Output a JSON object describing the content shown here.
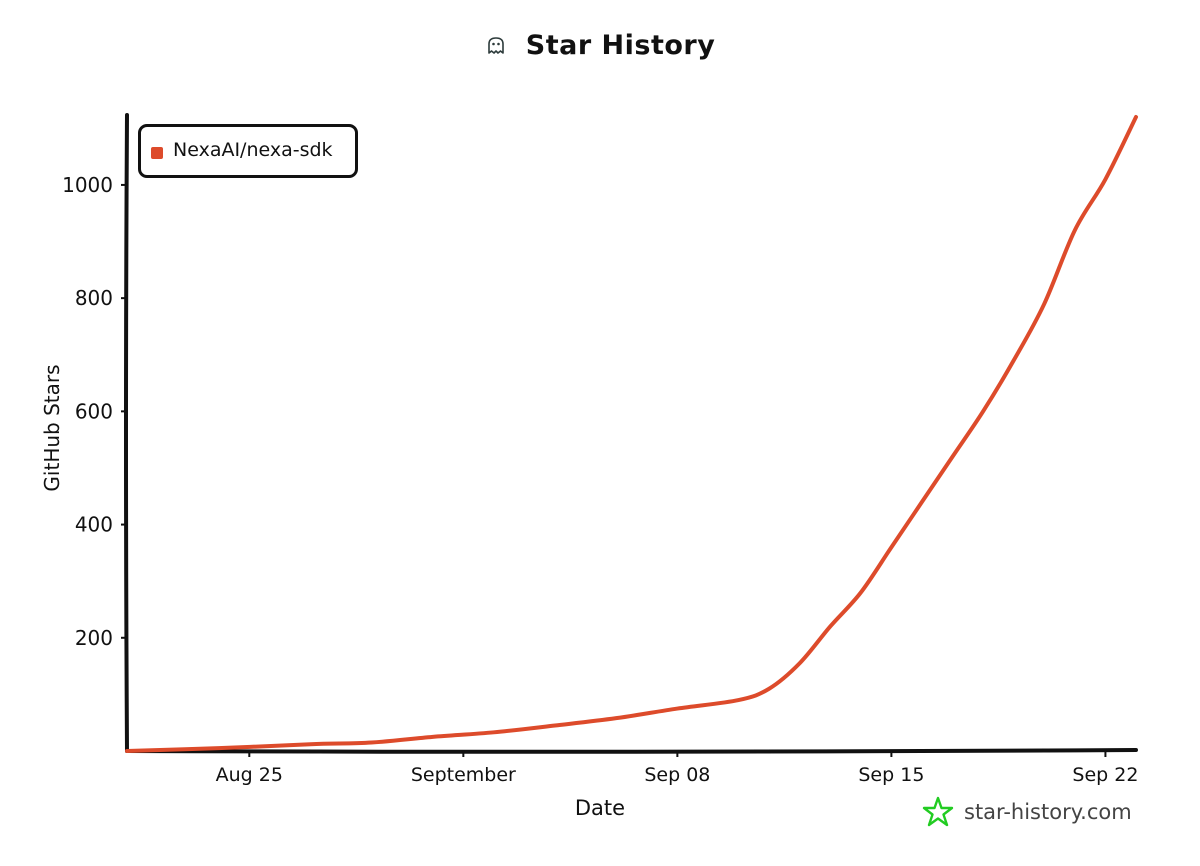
{
  "header": {
    "title": "Star History",
    "logo_icon": "star-history-ghost-icon"
  },
  "watermark": {
    "text": "star-history.com",
    "icon": "star-outline-icon",
    "icon_color": "#22cc22"
  },
  "chart_data": {
    "type": "line",
    "xlabel": "Date",
    "ylabel": "GitHub Stars",
    "x_tick_labels": [
      {
        "label": "Aug 25",
        "date": "2024-08-25"
      },
      {
        "label": "September",
        "date": "2024-09-01"
      },
      {
        "label": "Sep 08",
        "date": "2024-09-08"
      },
      {
        "label": "Sep 15",
        "date": "2024-09-15"
      },
      {
        "label": "Sep 22",
        "date": "2024-09-22"
      }
    ],
    "y_ticks": [
      200,
      400,
      600,
      800,
      1000
    ],
    "xlim": [
      "2024-08-21",
      "2024-09-23"
    ],
    "ylim": [
      0,
      1120
    ],
    "grid": false,
    "legend_position": "top-left",
    "series": [
      {
        "name": "NexaAI/nexa-sdk",
        "color": "#dd4b2b",
        "points": [
          {
            "x": "2024-08-21",
            "y": 0
          },
          {
            "x": "2024-08-24",
            "y": 5
          },
          {
            "x": "2024-08-27",
            "y": 12
          },
          {
            "x": "2024-08-29",
            "y": 15
          },
          {
            "x": "2024-08-31",
            "y": 25
          },
          {
            "x": "2024-09-02",
            "y": 33
          },
          {
            "x": "2024-09-04",
            "y": 45
          },
          {
            "x": "2024-09-06",
            "y": 58
          },
          {
            "x": "2024-09-08",
            "y": 75
          },
          {
            "x": "2024-09-10",
            "y": 90
          },
          {
            "x": "2024-09-11",
            "y": 110
          },
          {
            "x": "2024-09-12",
            "y": 155
          },
          {
            "x": "2024-09-13",
            "y": 220
          },
          {
            "x": "2024-09-14",
            "y": 280
          },
          {
            "x": "2024-09-15",
            "y": 360
          },
          {
            "x": "2024-09-16",
            "y": 440
          },
          {
            "x": "2024-09-17",
            "y": 520
          },
          {
            "x": "2024-09-18",
            "y": 600
          },
          {
            "x": "2024-09-19",
            "y": 690
          },
          {
            "x": "2024-09-20",
            "y": 790
          },
          {
            "x": "2024-09-21",
            "y": 920
          },
          {
            "x": "2024-09-22",
            "y": 1010
          },
          {
            "x": "2024-09-23",
            "y": 1120
          }
        ]
      }
    ]
  }
}
